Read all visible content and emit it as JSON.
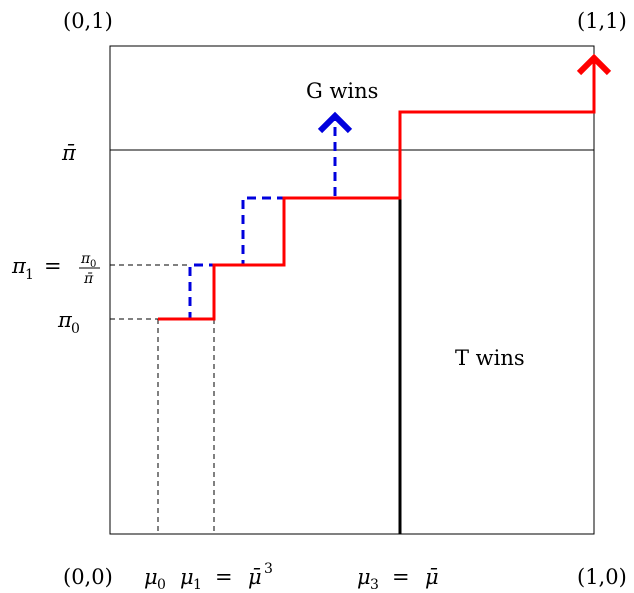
{
  "corners": {
    "top_left": "(0,1)",
    "top_right": "(1,1)",
    "bottom_left": "(0,0)",
    "bottom_right": "(1,0)"
  },
  "regions": {
    "g_wins": "G wins",
    "t_wins": "T wins"
  },
  "y_labels": {
    "pi_bar": "π̄",
    "pi1_lhs": "π",
    "pi1_sub": "1",
    "pi1_eq": "=",
    "pi1_num": "π",
    "pi1_num_sub": "0",
    "pi1_den": "π̄",
    "pi0": "π",
    "pi0_sub": "0"
  },
  "x_labels": {
    "mu0": "μ",
    "mu0_sub": "0",
    "mu1": "μ",
    "mu1_sub": "1",
    "mu1_eq": "=",
    "mu1_rhs": "μ̄",
    "mu1_exp": "3",
    "mu3": "μ",
    "mu3_sub": "3",
    "mu3_eq": "=",
    "mu3_rhs": "μ̄"
  },
  "colors": {
    "red_path": "#ff0000",
    "blue_path": "#0000dd",
    "black": "#000000"
  }
}
